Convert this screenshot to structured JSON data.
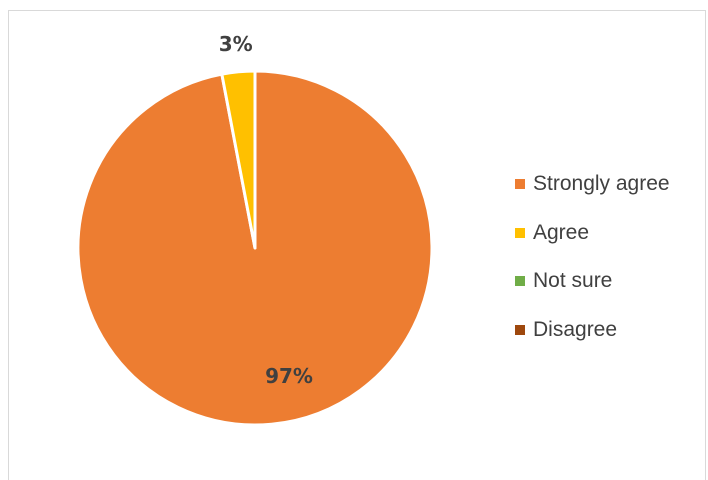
{
  "chart_data": {
    "type": "pie",
    "categories": [
      "Strongly agree",
      "Agree",
      "Not sure",
      "Disagree"
    ],
    "values": [
      97,
      3,
      0,
      0
    ],
    "data_labels": [
      "97%",
      "3%",
      "",
      ""
    ],
    "colors": [
      "#ED7D31",
      "#FFC000",
      "#70AD47",
      "#9E480E"
    ],
    "legend_placement": "right",
    "start_angle_deg": 0,
    "direction": "clockwise"
  }
}
